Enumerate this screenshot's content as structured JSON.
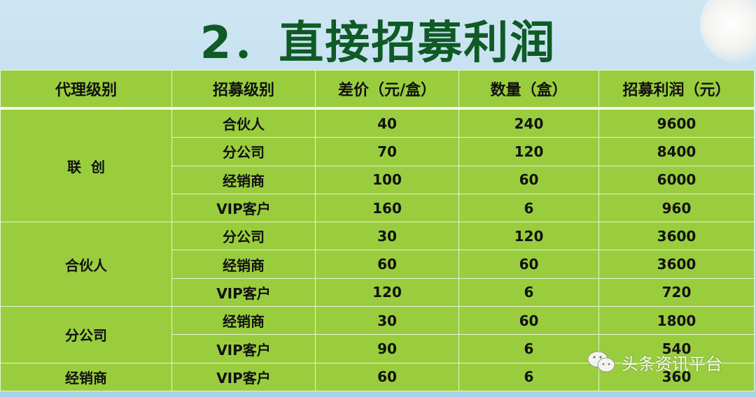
{
  "title": "2．直接招募利润",
  "table": {
    "headers": [
      "代理级别",
      "招募级别",
      "差价（元/盒）",
      "数量（盒）",
      "招募利润（元）"
    ],
    "groups": [
      {
        "level": "联  创",
        "rows": [
          [
            "合伙人",
            "40",
            "240",
            "9600"
          ],
          [
            "分公司",
            "70",
            "120",
            "8400"
          ],
          [
            "经销商",
            "100",
            "60",
            "6000"
          ],
          [
            "VIP客户",
            "160",
            "6",
            "960"
          ]
        ]
      },
      {
        "level": "合伙人",
        "rows": [
          [
            "分公司",
            "30",
            "120",
            "3600"
          ],
          [
            "经销商",
            "60",
            "60",
            "3600"
          ],
          [
            "VIP客户",
            "120",
            "6",
            "720"
          ]
        ]
      },
      {
        "level": "分公司",
        "rows": [
          [
            "经销商",
            "30",
            "60",
            "1800"
          ],
          [
            "VIP客户",
            "90",
            "6",
            "540"
          ]
        ]
      },
      {
        "level": "经销商",
        "rows": [
          [
            "VIP客户",
            "60",
            "6",
            "360"
          ]
        ]
      }
    ]
  },
  "watermark": {
    "icon": "wechat-icon",
    "text": "头条资讯平台"
  },
  "colors": {
    "title": "#0f5a25",
    "table": "#9acd3e"
  }
}
